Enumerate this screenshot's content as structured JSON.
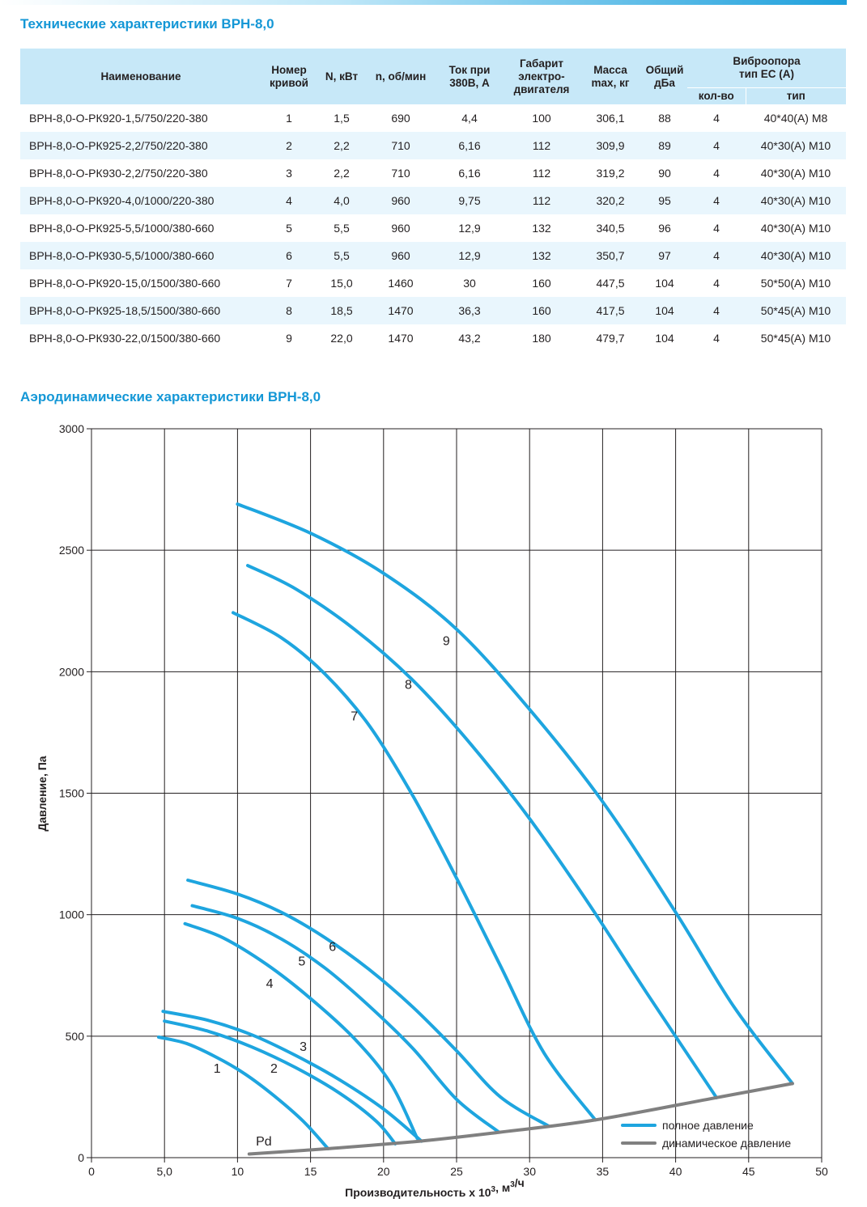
{
  "title_specs": "Технические характеристики ВРН-8,0",
  "title_aero": "Аэродинамические характеристики ВРН-8,0",
  "table": {
    "headers": {
      "name": "Наименование",
      "curve": [
        "Номер",
        "кривой"
      ],
      "power": "N, кВт",
      "rpm": "n, об/мин",
      "current": [
        "Ток при",
        "380В, А"
      ],
      "motor": [
        "Габарит",
        "электро-",
        "двигателя"
      ],
      "mass": [
        "Масса",
        "max, кг"
      ],
      "noise": [
        "Общий",
        "дБа"
      ],
      "vibro": [
        "Виброопора",
        "тип ЕС (А)"
      ],
      "vibro_qty": "кол-во",
      "vibro_type": "тип"
    },
    "rows": [
      [
        "ВРН-8,0-О-РК920-1,5/750/220-380",
        "1",
        "1,5",
        "690",
        "4,4",
        "100",
        "306,1",
        "88",
        "4",
        "40*40(А) М8"
      ],
      [
        "ВРН-8,0-О-РК925-2,2/750/220-380",
        "2",
        "2,2",
        "710",
        "6,16",
        "112",
        "309,9",
        "89",
        "4",
        "40*30(А) М10"
      ],
      [
        "ВРН-8,0-О-РК930-2,2/750/220-380",
        "3",
        "2,2",
        "710",
        "6,16",
        "112",
        "319,2",
        "90",
        "4",
        "40*30(А) М10"
      ],
      [
        "ВРН-8,0-О-РК920-4,0/1000/220-380",
        "4",
        "4,0",
        "960",
        "9,75",
        "112",
        "320,2",
        "95",
        "4",
        "40*30(А) М10"
      ],
      [
        "ВРН-8,0-О-РК925-5,5/1000/380-660",
        "5",
        "5,5",
        "960",
        "12,9",
        "132",
        "340,5",
        "96",
        "4",
        "40*30(А) М10"
      ],
      [
        "ВРН-8,0-О-РК930-5,5/1000/380-660",
        "6",
        "5,5",
        "960",
        "12,9",
        "132",
        "350,7",
        "97",
        "4",
        "40*30(А) М10"
      ],
      [
        "ВРН-8,0-О-РК920-15,0/1500/380-660",
        "7",
        "15,0",
        "1460",
        "30",
        "160",
        "447,5",
        "104",
        "4",
        "50*50(А) М10"
      ],
      [
        "ВРН-8,0-О-РК925-18,5/1500/380-660",
        "8",
        "18,5",
        "1470",
        "36,3",
        "160",
        "417,5",
        "104",
        "4",
        "50*45(А) М10"
      ],
      [
        "ВРН-8,0-О-РК930-22,0/1500/380-660",
        "9",
        "22,0",
        "1470",
        "43,2",
        "180",
        "479,7",
        "104",
        "4",
        "50*45(А) М10"
      ]
    ]
  },
  "chart_data": {
    "type": "line",
    "xlabel": "Производительность х 10³, м³/ч",
    "ylabel": "Давление, Па",
    "xlim": [
      0,
      50
    ],
    "ylim": [
      0,
      3000
    ],
    "x_ticks": [
      "0",
      "5,0",
      "10",
      "15",
      "20",
      "25",
      "30",
      "35",
      "40",
      "45",
      "50"
    ],
    "y_ticks": [
      "0",
      "500",
      "1000",
      "1500",
      "2000",
      "2500",
      "3000"
    ],
    "grid": true,
    "legend_position": "bottom-right",
    "legend": [
      "полное давление",
      "динамическое давление"
    ],
    "colors": {
      "total": "#1ea5df",
      "dynamic": "#808080"
    },
    "series": [
      {
        "name": "1",
        "points": [
          [
            4.6,
            496
          ],
          [
            6.5,
            470
          ],
          [
            8.5,
            415
          ],
          [
            10.5,
            345
          ],
          [
            12.5,
            255
          ],
          [
            14.5,
            150
          ],
          [
            16.2,
            37
          ]
        ]
      },
      {
        "name": "2",
        "points": [
          [
            5.0,
            562
          ],
          [
            8.0,
            520
          ],
          [
            11.0,
            455
          ],
          [
            14.0,
            370
          ],
          [
            17.0,
            265
          ],
          [
            19.5,
            150
          ],
          [
            20.8,
            57
          ]
        ]
      },
      {
        "name": "3",
        "points": [
          [
            4.9,
            602
          ],
          [
            8.0,
            565
          ],
          [
            11.0,
            505
          ],
          [
            14.0,
            420
          ],
          [
            17.0,
            320
          ],
          [
            20.0,
            200
          ],
          [
            22.6,
            68
          ]
        ]
      },
      {
        "name": "4",
        "points": [
          [
            6.4,
            963
          ],
          [
            9.0,
            905
          ],
          [
            12.0,
            795
          ],
          [
            15.0,
            655
          ],
          [
            18.0,
            490
          ],
          [
            20.5,
            305
          ],
          [
            22.3,
            80
          ]
        ]
      },
      {
        "name": "5",
        "points": [
          [
            6.9,
            1037
          ],
          [
            10.0,
            985
          ],
          [
            13.0,
            900
          ],
          [
            16.0,
            780
          ],
          [
            19.0,
            625
          ],
          [
            22.0,
            450
          ],
          [
            25.0,
            240
          ],
          [
            27.9,
            105
          ]
        ]
      },
      {
        "name": "6",
        "points": [
          [
            6.6,
            1142
          ],
          [
            10.0,
            1085
          ],
          [
            13.0,
            1010
          ],
          [
            16.0,
            905
          ],
          [
            19.0,
            775
          ],
          [
            22.0,
            620
          ],
          [
            25.0,
            440
          ],
          [
            28.0,
            250
          ],
          [
            31.3,
            130
          ]
        ]
      },
      {
        "name": "7",
        "points": [
          [
            9.7,
            2243
          ],
          [
            13.0,
            2140
          ],
          [
            16.0,
            1990
          ],
          [
            19.0,
            1780
          ],
          [
            22.0,
            1490
          ],
          [
            25.0,
            1150
          ],
          [
            28.0,
            790
          ],
          [
            31.0,
            430
          ],
          [
            34.5,
            155
          ]
        ]
      },
      {
        "name": "8",
        "points": [
          [
            10.7,
            2437
          ],
          [
            14.0,
            2340
          ],
          [
            18.0,
            2175
          ],
          [
            22.0,
            1965
          ],
          [
            26.0,
            1700
          ],
          [
            30.0,
            1395
          ],
          [
            34.0,
            1050
          ],
          [
            38.0,
            680
          ],
          [
            42.8,
            247
          ]
        ]
      },
      {
        "name": "9",
        "points": [
          [
            10.0,
            2690
          ],
          [
            15.0,
            2570
          ],
          [
            20.0,
            2405
          ],
          [
            25.0,
            2175
          ],
          [
            30.0,
            1845
          ],
          [
            35.0,
            1465
          ],
          [
            40.0,
            1010
          ],
          [
            44.0,
            620
          ],
          [
            48.0,
            305
          ]
        ]
      },
      {
        "name": "Pd",
        "points": [
          [
            10.8,
            15
          ],
          [
            16.2,
            37
          ],
          [
            22.5,
            68
          ],
          [
            28.0,
            105
          ],
          [
            34.5,
            155
          ],
          [
            42.8,
            247
          ],
          [
            48.0,
            305
          ]
        ]
      }
    ]
  }
}
